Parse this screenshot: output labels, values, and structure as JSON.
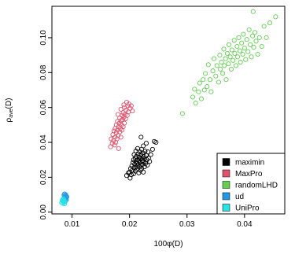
{
  "chart_data": {
    "type": "scatter",
    "title": "",
    "xlabel": "100φ(D)",
    "ylabel": "ρave(D)",
    "ylabel_main": "ρ",
    "ylabel_sub": "ave",
    "ylabel_suffix": "(D)",
    "xlim": [
      0.0065,
      0.047
    ],
    "ylim": [
      -0.001,
      0.118
    ],
    "x_ticks": [
      0.01,
      0.02,
      0.03,
      0.04
    ],
    "x_tick_labels": [
      "0.01",
      "0.02",
      "0.03",
      "0.04"
    ],
    "y_ticks": [
      0.0,
      0.02,
      0.04,
      0.06,
      0.08,
      0.1
    ],
    "y_tick_labels": [
      "0.00",
      "0.02",
      "0.04",
      "0.06",
      "0.08",
      "0.10"
    ],
    "grid": false,
    "legend_position": "bottom-right",
    "series": [
      {
        "name": "maximin",
        "color": "#000000",
        "points": [
          [
            0.0195,
            0.021
          ],
          [
            0.0198,
            0.0225
          ],
          [
            0.02,
            0.023
          ],
          [
            0.0201,
            0.0195
          ],
          [
            0.0202,
            0.025
          ],
          [
            0.0203,
            0.0215
          ],
          [
            0.0204,
            0.0265
          ],
          [
            0.0205,
            0.024
          ],
          [
            0.0206,
            0.0285
          ],
          [
            0.0207,
            0.022
          ],
          [
            0.0207,
            0.03
          ],
          [
            0.0208,
            0.0255
          ],
          [
            0.0208,
            0.033
          ],
          [
            0.0209,
            0.0275
          ],
          [
            0.021,
            0.0235
          ],
          [
            0.021,
            0.031
          ],
          [
            0.0211,
            0.029
          ],
          [
            0.0211,
            0.035
          ],
          [
            0.0212,
            0.026
          ],
          [
            0.0212,
            0.032
          ],
          [
            0.0213,
            0.028
          ],
          [
            0.0213,
            0.0245
          ],
          [
            0.0214,
            0.03
          ],
          [
            0.0214,
            0.0365
          ],
          [
            0.0215,
            0.027
          ],
          [
            0.0215,
            0.0335
          ],
          [
            0.0216,
            0.0225
          ],
          [
            0.0216,
            0.0295
          ],
          [
            0.0217,
            0.0315
          ],
          [
            0.0217,
            0.026
          ],
          [
            0.0218,
            0.0345
          ],
          [
            0.0218,
            0.0285
          ],
          [
            0.0219,
            0.024
          ],
          [
            0.0219,
            0.0305
          ],
          [
            0.022,
            0.027
          ],
          [
            0.022,
            0.033
          ],
          [
            0.0221,
            0.036
          ],
          [
            0.0221,
            0.025
          ],
          [
            0.0222,
            0.0295
          ],
          [
            0.0222,
            0.031
          ],
          [
            0.0223,
            0.0275
          ],
          [
            0.0223,
            0.034
          ],
          [
            0.0224,
            0.023
          ],
          [
            0.0224,
            0.038
          ],
          [
            0.0225,
            0.029
          ],
          [
            0.0225,
            0.032
          ],
          [
            0.0226,
            0.026
          ],
          [
            0.0226,
            0.0305
          ],
          [
            0.0227,
            0.035
          ],
          [
            0.0228,
            0.028
          ],
          [
            0.0229,
            0.0325
          ],
          [
            0.0229,
            0.0395
          ],
          [
            0.023,
            0.03
          ],
          [
            0.0231,
            0.027
          ],
          [
            0.0232,
            0.0345
          ],
          [
            0.0233,
            0.031
          ],
          [
            0.0235,
            0.029
          ],
          [
            0.0237,
            0.033
          ],
          [
            0.024,
            0.036
          ],
          [
            0.0243,
            0.0405
          ],
          [
            0.0246,
            0.04
          ],
          [
            0.022,
            0.043
          ]
        ]
      },
      {
        "name": "MaxPro",
        "color": "#DF536B",
        "points": [
          [
            0.0167,
            0.0375
          ],
          [
            0.0168,
            0.042
          ],
          [
            0.017,
            0.0395
          ],
          [
            0.0171,
            0.0445
          ],
          [
            0.0172,
            0.041
          ],
          [
            0.0173,
            0.0465
          ],
          [
            0.0174,
            0.0385
          ],
          [
            0.0175,
            0.043
          ],
          [
            0.0175,
            0.048
          ],
          [
            0.0176,
            0.04
          ],
          [
            0.0177,
            0.0455
          ],
          [
            0.0177,
            0.05
          ],
          [
            0.0178,
            0.042
          ],
          [
            0.0179,
            0.047
          ],
          [
            0.0179,
            0.052
          ],
          [
            0.018,
            0.044
          ],
          [
            0.0181,
            0.049
          ],
          [
            0.0181,
            0.0365
          ],
          [
            0.0182,
            0.051
          ],
          [
            0.0183,
            0.046
          ],
          [
            0.0183,
            0.054
          ],
          [
            0.0184,
            0.048
          ],
          [
            0.0185,
            0.0525
          ],
          [
            0.0185,
            0.043
          ],
          [
            0.0186,
            0.05
          ],
          [
            0.0187,
            0.0555
          ],
          [
            0.0187,
            0.047
          ],
          [
            0.0188,
            0.053
          ],
          [
            0.0189,
            0.049
          ],
          [
            0.0189,
            0.057
          ],
          [
            0.019,
            0.0545
          ],
          [
            0.0191,
            0.051
          ],
          [
            0.0191,
            0.06
          ],
          [
            0.0192,
            0.056
          ],
          [
            0.0193,
            0.0535
          ],
          [
            0.0194,
            0.0585
          ],
          [
            0.0195,
            0.063
          ],
          [
            0.0196,
            0.0555
          ],
          [
            0.0197,
            0.061
          ],
          [
            0.0198,
            0.0575
          ],
          [
            0.0199,
            0.062
          ],
          [
            0.0201,
            0.0595
          ],
          [
            0.0203,
            0.061
          ],
          [
            0.0205,
            0.058
          ],
          [
            0.019,
            0.0615
          ],
          [
            0.0185,
            0.059
          ],
          [
            0.018,
            0.056
          ]
        ]
      },
      {
        "name": "randomLHD",
        "color": "#61D04F",
        "points": [
          [
            0.0292,
            0.0565
          ],
          [
            0.031,
            0.066
          ],
          [
            0.0313,
            0.0705
          ],
          [
            0.0315,
            0.0625
          ],
          [
            0.032,
            0.069
          ],
          [
            0.0322,
            0.074
          ],
          [
            0.0325,
            0.065
          ],
          [
            0.0328,
            0.076
          ],
          [
            0.033,
            0.07
          ],
          [
            0.0332,
            0.0795
          ],
          [
            0.0335,
            0.072
          ],
          [
            0.0337,
            0.0845
          ],
          [
            0.034,
            0.076
          ],
          [
            0.0342,
            0.069
          ],
          [
            0.0345,
            0.081
          ],
          [
            0.0347,
            0.088
          ],
          [
            0.035,
            0.078
          ],
          [
            0.0352,
            0.084
          ],
          [
            0.0355,
            0.0745
          ],
          [
            0.0357,
            0.09
          ],
          [
            0.0358,
            0.082
          ],
          [
            0.036,
            0.086
          ],
          [
            0.0362,
            0.0795
          ],
          [
            0.0364,
            0.0935
          ],
          [
            0.0365,
            0.084
          ],
          [
            0.0367,
            0.088
          ],
          [
            0.0368,
            0.076
          ],
          [
            0.037,
            0.091
          ],
          [
            0.0372,
            0.085
          ],
          [
            0.0373,
            0.096
          ],
          [
            0.0375,
            0.089
          ],
          [
            0.0377,
            0.082
          ],
          [
            0.0378,
            0.093
          ],
          [
            0.038,
            0.087
          ],
          [
            0.0382,
            0.0985
          ],
          [
            0.0383,
            0.091
          ],
          [
            0.0385,
            0.084
          ],
          [
            0.0387,
            0.095
          ],
          [
            0.0388,
            0.089
          ],
          [
            0.039,
            0.1
          ],
          [
            0.0392,
            0.0925
          ],
          [
            0.0393,
            0.086
          ],
          [
            0.0395,
            0.097
          ],
          [
            0.0397,
            0.0905
          ],
          [
            0.0398,
            0.102
          ],
          [
            0.04,
            0.094
          ],
          [
            0.0402,
            0.0875
          ],
          [
            0.0404,
            0.099
          ],
          [
            0.0406,
            0.092
          ],
          [
            0.0408,
            0.1045
          ],
          [
            0.041,
            0.096
          ],
          [
            0.0412,
            0.089
          ],
          [
            0.0414,
            0.101
          ],
          [
            0.0416,
            0.0945
          ],
          [
            0.0418,
            0.103
          ],
          [
            0.042,
            0.098
          ],
          [
            0.0423,
            0.0905
          ],
          [
            0.0426,
            0.1
          ],
          [
            0.043,
            0.095
          ],
          [
            0.0434,
            0.1065
          ],
          [
            0.0438,
            0.1
          ],
          [
            0.0444,
            0.1085
          ],
          [
            0.0454,
            0.112
          ],
          [
            0.0415,
            0.115
          ]
        ]
      },
      {
        "name": "ud",
        "color": "#2297E6",
        "points": [
          [
            0.0085,
            0.0065
          ],
          [
            0.0086,
            0.008
          ],
          [
            0.0087,
            0.007
          ],
          [
            0.0087,
            0.009
          ],
          [
            0.0088,
            0.0075
          ],
          [
            0.0088,
            0.0095
          ],
          [
            0.0089,
            0.0085
          ],
          [
            0.0089,
            0.01
          ],
          [
            0.009,
            0.0078
          ],
          [
            0.009,
            0.0092
          ],
          [
            0.0091,
            0.0088
          ],
          [
            0.0086,
            0.0098
          ],
          [
            0.0088,
            0.006
          ],
          [
            0.009,
            0.007
          ],
          [
            0.0087,
            0.0105
          ]
        ]
      },
      {
        "name": "UniPro",
        "color": "#28E2E5",
        "points": [
          [
            0.0082,
            0.0055
          ],
          [
            0.0083,
            0.0065
          ],
          [
            0.0084,
            0.005
          ],
          [
            0.0084,
            0.0072
          ],
          [
            0.0085,
            0.006
          ],
          [
            0.0085,
            0.0078
          ],
          [
            0.0086,
            0.0055
          ],
          [
            0.0086,
            0.0068
          ],
          [
            0.0087,
            0.0062
          ],
          [
            0.0087,
            0.0048
          ],
          [
            0.0088,
            0.0058
          ],
          [
            0.0083,
            0.007
          ]
        ]
      }
    ]
  }
}
